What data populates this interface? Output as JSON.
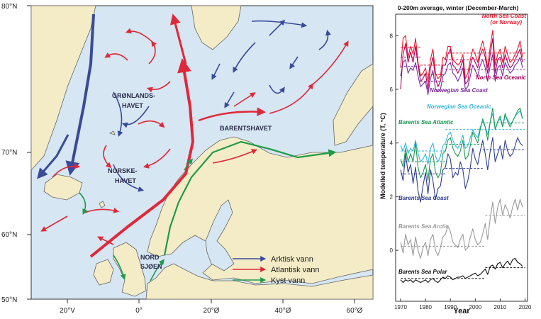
{
  "map": {
    "lat_labels": [
      "80°N",
      "70°N",
      "60°N",
      "50°N"
    ],
    "lon_labels": [
      "20°V",
      "0°",
      "20°Ø",
      "40°Ø",
      "60°Ø"
    ],
    "region_labels": {
      "gronland_1": "GRØNLANDS-",
      "gronland_2": "HAVET",
      "norske_1": "NORSKE-",
      "norske_2": "HAVET",
      "barents": "BARENTSHAVET",
      "nord_1": "NORD",
      "nord_2": "SJØEN"
    },
    "legend": [
      {
        "label": "Arktisk vann",
        "color": "#3a4a9a"
      },
      {
        "label": "Atlantisk vann",
        "color": "#e0283a"
      },
      {
        "label": "Kyst vann",
        "color": "#1f9a4a"
      }
    ],
    "colors": {
      "sea": "#d6e6f2",
      "land": "#f3ecc6",
      "coast": "#555555"
    }
  },
  "chart_data": {
    "type": "line",
    "title": "0-200m average, winter (December-March)",
    "xlabel": "Year",
    "ylabel": "Modelled temperature (T, °C)",
    "xlim": [
      1968,
      2021
    ],
    "ylim": [
      -1.9,
      8.8
    ],
    "xticks": [
      1970,
      1980,
      1990,
      2000,
      2010,
      2020
    ],
    "yticks": [
      0,
      2,
      4,
      6,
      8
    ],
    "grid": false,
    "series": [
      {
        "name": "North Sea Coast\n(or Norway)",
        "color": "#e8172a",
        "x_start": 1970,
        "values": [
          6.8,
          7.9,
          8.0,
          7.2,
          7.6,
          7.3,
          7.9,
          7.0,
          6.5,
          6.6,
          6.8,
          6.3,
          7.1,
          7.5,
          6.6,
          6.4,
          6.5,
          7.2,
          7.1,
          7.6,
          7.6,
          7.1,
          7.0,
          6.9,
          7.0,
          7.3,
          6.4,
          6.6,
          7.1,
          7.5,
          7.3,
          7.0,
          7.5,
          7.8,
          7.4,
          6.8,
          7.6,
          8.2,
          6.9,
          7.3,
          7.5,
          7.0,
          7.6,
          7.3,
          7.0,
          7.1,
          7.3,
          7.5,
          7.8,
          7.2
        ],
        "means": [
          {
            "x": [
              1970,
              1978
            ],
            "y": 7.55
          },
          {
            "x": [
              1978,
              1988
            ],
            "y": 6.9
          },
          {
            "x": [
              1988,
              2020
            ],
            "y": 7.35
          }
        ]
      },
      {
        "name": "North Sea Oceanic",
        "color": "#b0005a",
        "x_start": 1970,
        "values": [
          6.0,
          7.3,
          7.7,
          7.0,
          7.4,
          7.0,
          7.6,
          6.9,
          6.3,
          6.4,
          6.6,
          6.0,
          6.8,
          7.2,
          6.4,
          6.1,
          6.3,
          6.9,
          6.9,
          7.3,
          7.5,
          6.9,
          6.8,
          6.6,
          6.8,
          7.1,
          6.2,
          6.3,
          6.9,
          7.2,
          7.0,
          6.8,
          7.3,
          7.5,
          7.2,
          6.6,
          7.3,
          7.9,
          6.6,
          7.1,
          7.2,
          6.8,
          7.3,
          7.0,
          6.8,
          6.9,
          7.1,
          7.3,
          7.5,
          7.0
        ],
        "means": [
          {
            "x": [
              1970,
              1978
            ],
            "y": 7.2
          },
          {
            "x": [
              1978,
              1988
            ],
            "y": 6.55
          },
          {
            "x": [
              1988,
              2020
            ],
            "y": 7.1
          }
        ]
      },
      {
        "name": "Norwegian Sea Coast",
        "color": "#7a2a9a",
        "x_start": 1970,
        "values": [
          6.5,
          7.0,
          7.1,
          6.6,
          6.8,
          6.7,
          7.0,
          6.5,
          6.1,
          6.2,
          6.3,
          5.8,
          6.4,
          6.7,
          6.0,
          5.9,
          6.0,
          6.5,
          6.6,
          6.9,
          7.0,
          6.6,
          6.5,
          6.3,
          6.5,
          6.8,
          6.0,
          6.1,
          6.5,
          6.9,
          6.7,
          6.5,
          6.9,
          7.1,
          6.8,
          6.3,
          6.9,
          7.3,
          6.3,
          6.8,
          6.9,
          6.5,
          7.0,
          6.8,
          6.6,
          6.7,
          6.9,
          7.0,
          7.2,
          6.8
        ],
        "means": [
          {
            "x": [
              1970,
              1978
            ],
            "y": 6.85
          },
          {
            "x": [
              1978,
              1988
            ],
            "y": 6.3
          },
          {
            "x": [
              1988,
              2020
            ],
            "y": 6.75
          }
        ]
      },
      {
        "name": "Norwegian Sea Oceanic",
        "color": "#35b4dc",
        "x_start": 1970,
        "values": [
          3.9,
          3.7,
          4.0,
          3.6,
          3.8,
          3.7,
          4.1,
          3.6,
          3.3,
          3.4,
          3.6,
          3.2,
          3.8,
          4.0,
          3.5,
          3.3,
          3.5,
          3.9,
          4.0,
          4.3,
          4.4,
          4.1,
          3.9,
          3.8,
          4.0,
          4.3,
          3.8,
          3.9,
          4.2,
          4.5,
          4.3,
          4.2,
          4.6,
          4.8,
          4.6,
          4.3,
          4.8,
          5.1,
          4.5,
          4.8,
          4.9,
          4.6,
          5.0,
          4.9,
          4.7,
          4.8,
          5.0,
          5.1,
          5.2,
          4.9
        ],
        "means": [
          {
            "x": [
              1970,
              1988
            ],
            "y": 3.7
          },
          {
            "x": [
              1988,
              2020
            ],
            "y": 4.5
          }
        ]
      },
      {
        "name": "Barents Sea Atlantic",
        "color": "#1d9a55",
        "x_start": 1970,
        "values": [
          3.4,
          3.1,
          3.8,
          3.3,
          3.6,
          3.3,
          4.0,
          3.1,
          2.7,
          2.9,
          3.2,
          2.6,
          3.4,
          3.6,
          2.9,
          2.7,
          2.9,
          3.6,
          3.7,
          4.1,
          4.2,
          3.8,
          3.6,
          3.5,
          3.7,
          4.1,
          3.4,
          3.5,
          3.9,
          4.4,
          4.2,
          4.0,
          4.5,
          4.9,
          4.6,
          4.1,
          4.8,
          5.3,
          4.5,
          4.8,
          5.0,
          4.6,
          5.1,
          4.8,
          4.6,
          4.8,
          5.0,
          5.2,
          5.3,
          4.9
        ],
        "means": [
          {
            "x": [
              1970,
              1988
            ],
            "y": 3.3
          },
          {
            "x": [
              1988,
              2003
            ],
            "y": 3.95
          },
          {
            "x": [
              2003,
              2020
            ],
            "y": 4.75
          }
        ]
      },
      {
        "name": "Barents Sea Coast",
        "color": "#2e3d8f",
        "x_start": 1970,
        "values": [
          3.0,
          2.6,
          3.6,
          2.9,
          3.2,
          2.5,
          3.1,
          2.2,
          1.8,
          2.4,
          2.9,
          2.1,
          3.0,
          2.6,
          1.9,
          2.3,
          2.4,
          3.0,
          3.1,
          3.6,
          3.4,
          2.7,
          2.9,
          2.8,
          3.3,
          3.0,
          2.3,
          2.6,
          3.1,
          3.8,
          3.4,
          3.2,
          3.7,
          4.1,
          3.6,
          3.0,
          3.7,
          4.2,
          3.3,
          3.6,
          3.9,
          3.4,
          4.1,
          3.7,
          3.5,
          3.6,
          3.9,
          4.2,
          4.0,
          3.9
        ],
        "means": [
          {
            "x": [
              1970,
              1988
            ],
            "y": 2.85
          },
          {
            "x": [
              1988,
              2003
            ],
            "y": 3.05
          },
          {
            "x": [
              2003,
              2020
            ],
            "y": 3.75
          }
        ]
      },
      {
        "name": "Barents Sea Arctic",
        "color": "#9a9a9a",
        "x_start": 1970,
        "values": [
          0.3,
          -0.1,
          0.6,
          0.2,
          0.4,
          -0.2,
          0.5,
          0.0,
          -0.3,
          0.1,
          0.3,
          -0.2,
          0.4,
          0.6,
          0.0,
          -0.2,
          0.1,
          0.5,
          0.6,
          0.9,
          0.7,
          0.3,
          0.2,
          0.1,
          0.4,
          0.6,
          0.0,
          0.1,
          0.5,
          0.8,
          0.4,
          0.2,
          0.3,
          0.6,
          1.0,
          0.4,
          1.2,
          1.8,
          1.0,
          1.6,
          1.9,
          1.3,
          1.7,
          1.5,
          1.2,
          1.6,
          1.9,
          1.5,
          1.9,
          1.6
        ],
        "means": [
          {
            "x": [
              1970,
              2004
            ],
            "y": 0.15
          },
          {
            "x": [
              2004,
              2020
            ],
            "y": 1.3
          }
        ]
      },
      {
        "name": "Barents Sea Polar",
        "color": "#111111",
        "x_start": 1970,
        "values": [
          -1.1,
          -1.2,
          -1.1,
          -1.15,
          -1.1,
          -1.2,
          -1.1,
          -1.15,
          -1.2,
          -1.15,
          -1.1,
          -1.2,
          -1.1,
          -1.05,
          -1.15,
          -1.2,
          -1.1,
          -1.0,
          -1.05,
          -0.95,
          -1.0,
          -1.1,
          -1.05,
          -1.0,
          -1.0,
          -0.95,
          -1.05,
          -1.0,
          -0.95,
          -0.9,
          -0.85,
          -0.95,
          -0.9,
          -0.8,
          -0.7,
          -0.9,
          -0.6,
          -0.55,
          -0.7,
          -0.5,
          -0.45,
          -0.65,
          -0.5,
          -0.4,
          -0.55,
          -0.35,
          -0.3,
          -0.45,
          -0.5,
          -0.6
        ],
        "means": [
          {
            "x": [
              1970,
              2004
            ],
            "y": -1.05
          },
          {
            "x": [
              2004,
              2020
            ],
            "y": -0.65
          }
        ]
      }
    ]
  }
}
